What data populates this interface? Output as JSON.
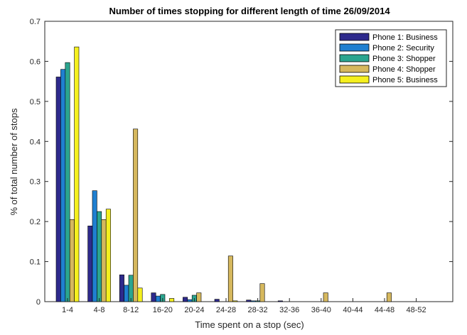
{
  "chart_data": {
    "type": "bar",
    "title": "Number of times stopping for different length of time 26/09/2014",
    "xlabel": "Time spent on a stop (sec)",
    "ylabel": "% of total number of stops",
    "categories": [
      "1-4",
      "4-8",
      "8-12",
      "16-20",
      "20-24",
      "24-28",
      "28-32",
      "32-36",
      "36-40",
      "40-44",
      "44-48",
      "48-52"
    ],
    "ylim": [
      0,
      0.7
    ],
    "yticks": [
      "0",
      "0.1",
      "0.2",
      "0.3",
      "0.4",
      "0.5",
      "0.6",
      "0.7"
    ],
    "legend_position": "top-right",
    "series": [
      {
        "name": "Phone 1: Business",
        "color": "#2e2a8c",
        "values": [
          0.561,
          0.189,
          0.067,
          0.022,
          0.011,
          0.006,
          0.004,
          0.002,
          0,
          0,
          0,
          0
        ]
      },
      {
        "name": "Phone 2: Security",
        "color": "#1f7fd0",
        "values": [
          0.58,
          0.277,
          0.041,
          0.014,
          0.005,
          0,
          0.002,
          0,
          0,
          0,
          0,
          0
        ]
      },
      {
        "name": "Phone 3: Shopper",
        "color": "#2ba58f",
        "values": [
          0.597,
          0.225,
          0.066,
          0.018,
          0.016,
          0,
          0.002,
          0,
          0,
          0,
          0,
          0
        ]
      },
      {
        "name": "Phone 4: Shopper",
        "color": "#d6b85e",
        "values": [
          0.205,
          0.205,
          0.431,
          0,
          0.022,
          0.114,
          0.045,
          0,
          0.022,
          0,
          0.022,
          0
        ]
      },
      {
        "name": "Phone 5: Business",
        "color": "#f5f01f",
        "values": [
          0.636,
          0.231,
          0.034,
          0.008,
          0,
          0.002,
          0,
          0,
          0,
          0,
          0,
          0
        ]
      }
    ]
  }
}
